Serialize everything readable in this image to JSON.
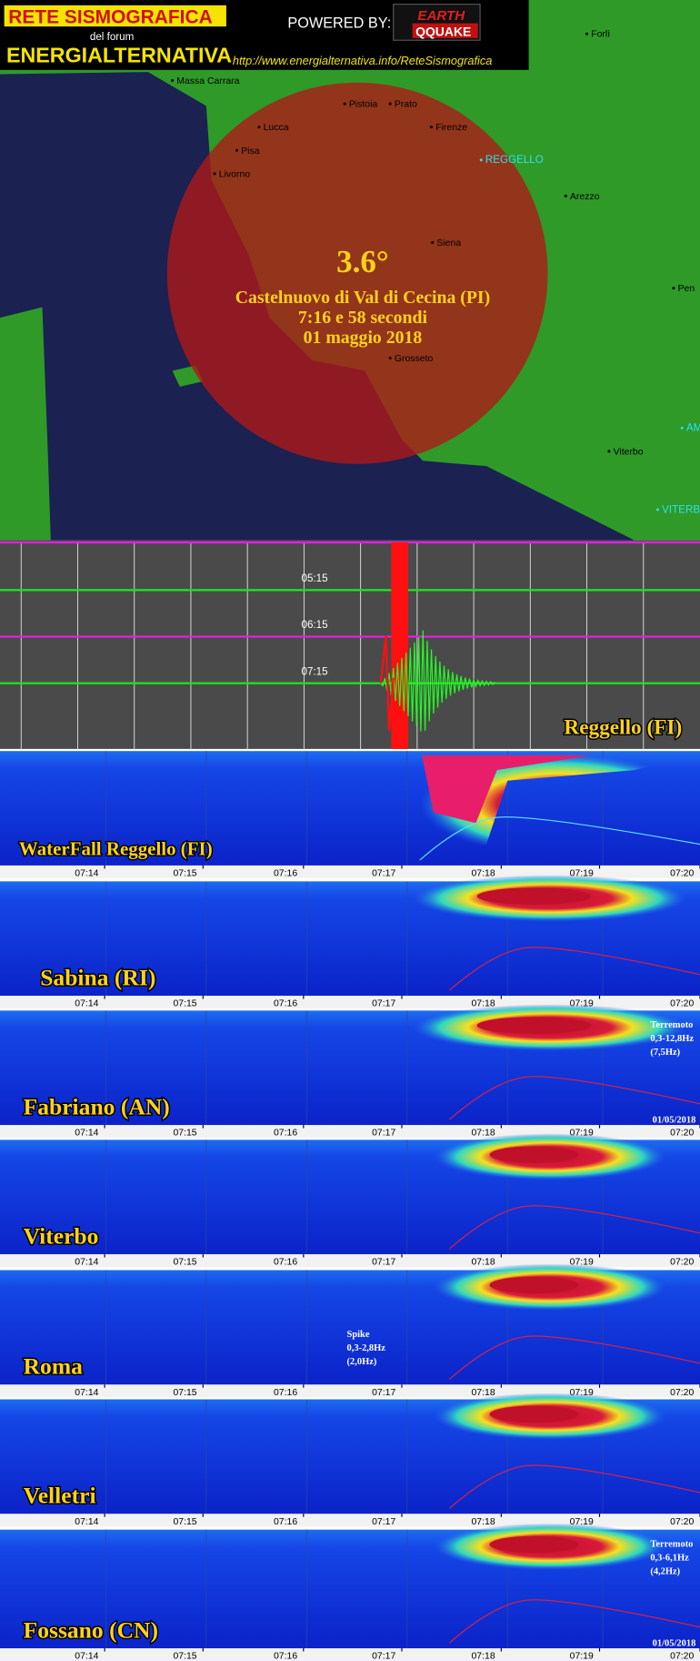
{
  "header": {
    "title_line1": "RETE SISMOGRAFICA",
    "subtitle": "del forum",
    "title_line2": "ENERGIALTERNATIVA",
    "powered": "POWERED BY:",
    "logo_top": "EARTH",
    "logo_bottom": "QQUAKE",
    "url": "http://www.energialternativa.info/ReteSismografica"
  },
  "map": {
    "cities": [
      "Forlì",
      "Massa Carrara",
      "Pistoia",
      "Prato",
      "Lucca",
      "Firenze",
      "Pisa",
      "REGGELLO",
      "Livorno",
      "Arezzo",
      "Siena",
      "Pen",
      "Grosseto",
      "AM",
      "Viterbo",
      "VITERBO"
    ]
  },
  "event": {
    "magnitude": "3.6°",
    "place": "Castelnuovo di Val di Cecina (PI)",
    "time": "7:16 e 58 secondi",
    "date": "01 maggio 2018"
  },
  "seismogram": {
    "station": "Reggello (FI)",
    "trace_labels": [
      "05:15",
      "06:15",
      "07:15"
    ]
  },
  "time_ticks": [
    "07:14",
    "07:15",
    "07:16",
    "07:17",
    "07:18",
    "07:19",
    "07:20"
  ],
  "panels": [
    {
      "name": "WaterFall Reggello (FI)"
    },
    {
      "name": "Sabina (RI)"
    },
    {
      "name": "Fabriano (AN)",
      "note": [
        "Terremoto",
        "0,3-12,8Hz",
        "(7,5Hz)"
      ],
      "date": "01/05/2018"
    },
    {
      "name": "Viterbo"
    },
    {
      "name": "Roma",
      "note": [
        "Spike",
        "0,3-2,8Hz",
        "(2,0Hz)"
      ]
    },
    {
      "name": "Velletri"
    },
    {
      "name": "Fossano (CN)",
      "note": [
        "Terremoto",
        "0,3-6,1Hz",
        "(4,2Hz)"
      ],
      "date": "01/05/2018"
    }
  ]
}
